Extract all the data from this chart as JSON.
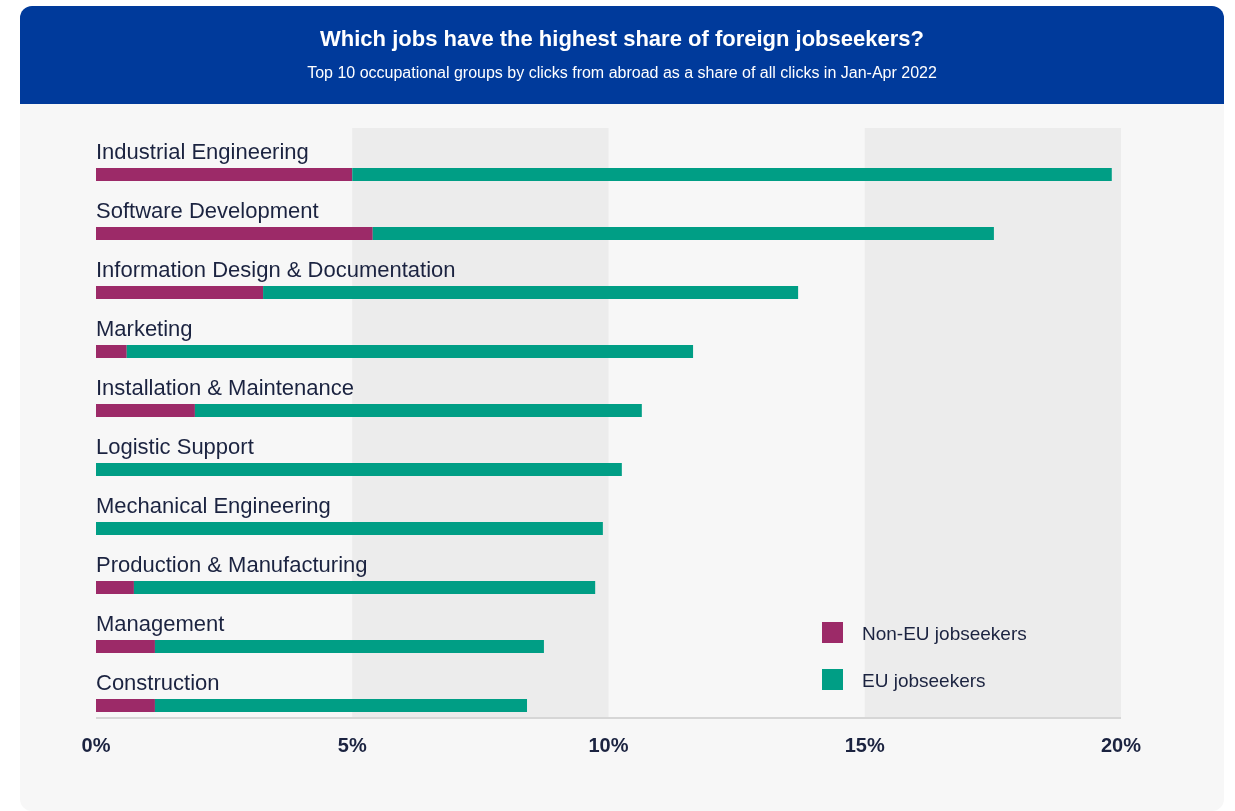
{
  "chart_data": {
    "type": "bar",
    "orientation": "horizontal",
    "stacked": true,
    "title": "Which jobs have the highest share of foreign jobseekers?",
    "subtitle": "Top 10 occupational groups by clicks from abroad as a share of all clicks in Jan-Apr 2022",
    "categories": [
      "Industrial Engineering",
      "Software Development",
      "Information Design & Documentation",
      "Marketing",
      "Installation & Maintenance",
      "Logistic Support",
      "Mechanical Engineering",
      "Production & Manufacturing",
      "Management",
      "Construction"
    ],
    "series": [
      {
        "name": "Non-EU jobseekers",
        "color": "#9c2a68",
        "values": [
          5.0,
          5.4,
          3.26,
          0.6,
          1.93,
          0,
          0,
          0.74,
          1.15,
          1.15
        ]
      },
      {
        "name": "EU jobseekers",
        "color": "#009e85",
        "values": [
          14.82,
          12.12,
          10.44,
          11.05,
          8.72,
          10.26,
          9.89,
          9.0,
          7.59,
          7.26
        ]
      }
    ],
    "xlim": [
      0,
      20
    ],
    "xticks": [
      {
        "value": 0,
        "label": "0%"
      },
      {
        "value": 5,
        "label": "5%"
      },
      {
        "value": 10,
        "label": "10%"
      },
      {
        "value": 15,
        "label": "15%"
      },
      {
        "value": 20,
        "label": "20%"
      }
    ],
    "legend": "bottom right"
  }
}
